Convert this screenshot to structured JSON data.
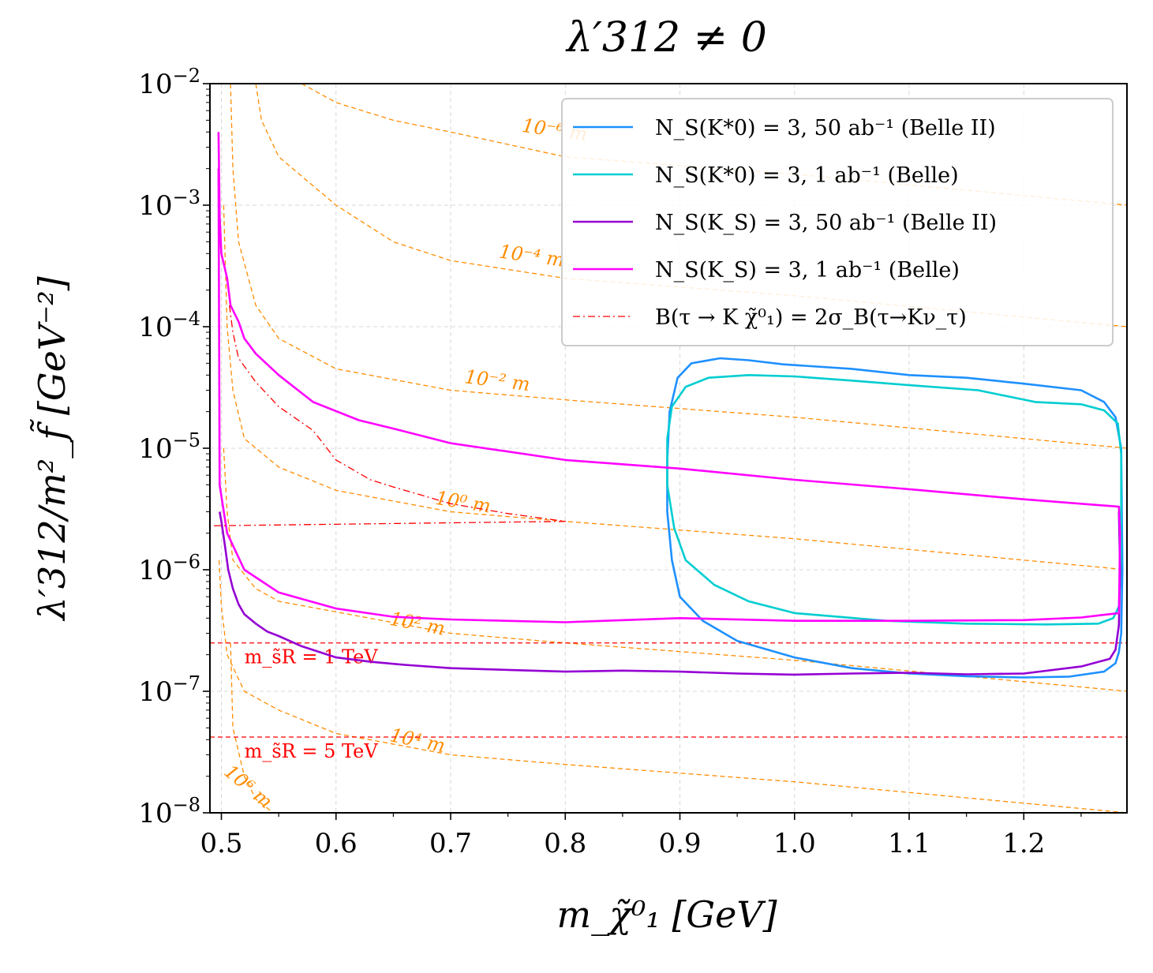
{
  "chart_data": {
    "type": "line",
    "title": "λ′312 ≠ 0",
    "xlabel": "m_χ̃⁰₁ [GeV]",
    "ylabel": "λ′312/m²_f̃ [GeV⁻²]",
    "xlim": [
      0.49,
      1.29
    ],
    "ylim": [
      1e-08,
      0.01
    ],
    "xscale": "linear",
    "yscale": "log",
    "grid": true,
    "legend_position": "top-right",
    "x_ticks": [
      {
        "value": 0.5,
        "label": "0.5"
      },
      {
        "value": 0.6,
        "label": "0.6"
      },
      {
        "value": 0.7,
        "label": "0.7"
      },
      {
        "value": 0.8,
        "label": "0.8"
      },
      {
        "value": 0.9,
        "label": "0.9"
      },
      {
        "value": 1.0,
        "label": "1.0"
      },
      {
        "value": 1.1,
        "label": "1.1"
      },
      {
        "value": 1.2,
        "label": "1.2"
      }
    ],
    "y_ticks": [
      {
        "value": 1e-08,
        "base": "10",
        "exp": "−8"
      },
      {
        "value": 1e-07,
        "base": "10",
        "exp": "−7"
      },
      {
        "value": 1e-06,
        "base": "10",
        "exp": "−6"
      },
      {
        "value": 1e-05,
        "base": "10",
        "exp": "−5"
      },
      {
        "value": 0.0001,
        "base": "10",
        "exp": "−4"
      },
      {
        "value": 0.001,
        "base": "10",
        "exp": "−3"
      },
      {
        "value": 0.01,
        "base": "10",
        "exp": "−2"
      }
    ],
    "series": [
      {
        "name": "N_S(K*0) = 3, 50 ab⁻¹ (Belle II)",
        "color": "#1e90ff",
        "style": "solid",
        "closed": true,
        "points": [
          [
            0.935,
            5.5e-05
          ],
          [
            0.96,
            5.3e-05
          ],
          [
            0.99,
            4.9e-05
          ],
          [
            1.05,
            4.5e-05
          ],
          [
            1.1,
            4e-05
          ],
          [
            1.15,
            3.8e-05
          ],
          [
            1.2,
            3.4e-05
          ],
          [
            1.25,
            3e-05
          ],
          [
            1.27,
            2.4e-05
          ],
          [
            1.28,
            1.8e-05
          ],
          [
            1.285,
            1e-05
          ],
          [
            1.286,
            1e-06
          ],
          [
            1.285,
            3e-07
          ],
          [
            1.283,
            2.1e-07
          ],
          [
            1.28,
            1.7e-07
          ],
          [
            1.27,
            1.45e-07
          ],
          [
            1.24,
            1.32e-07
          ],
          [
            1.2,
            1.3e-07
          ],
          [
            1.15,
            1.33e-07
          ],
          [
            1.1,
            1.4e-07
          ],
          [
            1.05,
            1.55e-07
          ],
          [
            1.0,
            1.9e-07
          ],
          [
            0.95,
            2.6e-07
          ],
          [
            0.92,
            3.8e-07
          ],
          [
            0.9,
            6e-07
          ],
          [
            0.893,
            1.2e-06
          ],
          [
            0.889,
            3e-06
          ],
          [
            0.889,
            8e-06
          ],
          [
            0.891,
            2e-05
          ],
          [
            0.898,
            3.8e-05
          ],
          [
            0.91,
            5e-05
          ]
        ]
      },
      {
        "name": "N_S(K*0) = 3, 1 ab⁻¹ (Belle)",
        "color": "#00cdd1",
        "style": "solid",
        "closed": true,
        "points": [
          [
            0.96,
            4e-05
          ],
          [
            1.0,
            3.9e-05
          ],
          [
            1.05,
            3.6e-05
          ],
          [
            1.1,
            3.3e-05
          ],
          [
            1.16,
            3e-05
          ],
          [
            1.21,
            2.4e-05
          ],
          [
            1.25,
            2.3e-05
          ],
          [
            1.27,
            2.05e-05
          ],
          [
            1.282,
            1.6e-05
          ],
          [
            1.285,
            9e-06
          ],
          [
            1.285,
            1.2e-06
          ],
          [
            1.283,
            5e-07
          ],
          [
            1.278,
            4e-07
          ],
          [
            1.265,
            3.6e-07
          ],
          [
            1.22,
            3.55e-07
          ],
          [
            1.15,
            3.6e-07
          ],
          [
            1.08,
            3.8e-07
          ],
          [
            1.0,
            4.4e-07
          ],
          [
            0.96,
            5.5e-07
          ],
          [
            0.93,
            7.5e-07
          ],
          [
            0.905,
            1.2e-06
          ],
          [
            0.895,
            2.2e-06
          ],
          [
            0.889,
            5e-06
          ],
          [
            0.889,
            1.2e-05
          ],
          [
            0.893,
            2.2e-05
          ],
          [
            0.905,
            3.2e-05
          ],
          [
            0.925,
            3.8e-05
          ]
        ]
      },
      {
        "name": "N_S(K_S) = 3, 50 ab⁻¹ (Belle II)",
        "color": "#9400d3",
        "style": "solid",
        "closed": false,
        "points": [
          [
            0.4985,
            3e-06
          ],
          [
            0.5,
            2.5e-06
          ],
          [
            0.503,
            1.6e-06
          ],
          [
            0.506,
            1e-06
          ],
          [
            0.51,
            7e-07
          ],
          [
            0.515,
            5.2e-07
          ],
          [
            0.52,
            4.3e-07
          ],
          [
            0.53,
            3.6e-07
          ],
          [
            0.54,
            3.1e-07
          ],
          [
            0.55,
            2.85e-07
          ],
          [
            0.57,
            2.35e-07
          ],
          [
            0.6,
            1.9e-07
          ],
          [
            0.63,
            1.75e-07
          ],
          [
            0.66,
            1.65e-07
          ],
          [
            0.7,
            1.55e-07
          ],
          [
            0.75,
            1.5e-07
          ],
          [
            0.8,
            1.45e-07
          ],
          [
            0.85,
            1.48e-07
          ],
          [
            0.9,
            1.45e-07
          ],
          [
            0.95,
            1.4e-07
          ],
          [
            1.0,
            1.37e-07
          ],
          [
            1.05,
            1.4e-07
          ],
          [
            1.1,
            1.42e-07
          ],
          [
            1.15,
            1.38e-07
          ],
          [
            1.2,
            1.4e-07
          ],
          [
            1.25,
            1.6e-07
          ],
          [
            1.275,
            1.85e-07
          ],
          [
            1.28,
            2.2e-07
          ],
          [
            1.283,
            3.5e-07
          ],
          [
            1.284,
            1e-06
          ],
          [
            1.283,
            3e-06
          ]
        ]
      },
      {
        "name": "N_S(K_S) = 3, 1 ab⁻¹ (Belle)",
        "color": "#ff00ff",
        "style": "solid",
        "closed": false,
        "points": [
          [
            0.4975,
            0.004
          ],
          [
            0.4985,
            0.0008
          ],
          [
            0.5,
            0.0004
          ],
          [
            0.505,
            0.00025
          ],
          [
            0.508,
            0.00015
          ],
          [
            0.515,
            0.00011
          ],
          [
            0.52,
            8e-05
          ],
          [
            0.53,
            6e-05
          ],
          [
            0.55,
            4e-05
          ],
          [
            0.58,
            2.4e-05
          ],
          [
            0.62,
            1.7e-05
          ],
          [
            0.65,
            1.45e-05
          ],
          [
            0.7,
            1.1e-05
          ],
          [
            0.8,
            8e-06
          ],
          [
            0.9,
            6.8e-06
          ],
          [
            1.0,
            5.5e-06
          ],
          [
            1.1,
            4.6e-06
          ],
          [
            1.2,
            3.8e-06
          ],
          [
            1.283,
            3.3e-06
          ],
          [
            1.284,
            2e-06
          ],
          [
            1.283,
            4.4e-07
          ],
          [
            1.25,
            4.05e-07
          ],
          [
            1.2,
            3.85e-07
          ],
          [
            1.1,
            3.8e-07
          ],
          [
            1.0,
            3.8e-07
          ],
          [
            0.9,
            4e-07
          ],
          [
            0.8,
            3.7e-07
          ],
          [
            0.7,
            3.9e-07
          ],
          [
            0.65,
            4.1e-07
          ],
          [
            0.6,
            4.8e-07
          ],
          [
            0.55,
            6.5e-07
          ],
          [
            0.52,
            1e-06
          ],
          [
            0.505,
            2e-06
          ],
          [
            0.4985,
            5e-06
          ],
          [
            0.4975,
            0.002
          ]
        ]
      },
      {
        "name": "B(τ → K χ̃⁰₁) = 2σ_B(τ→Kν_τ)",
        "color": "#ff0000",
        "style": "dashdot",
        "closed": false,
        "points": [
          [
            0.507,
            0.00015
          ],
          [
            0.51,
            9e-05
          ],
          [
            0.515,
            5.5e-05
          ],
          [
            0.53,
            3.5e-05
          ],
          [
            0.55,
            2.2e-05
          ],
          [
            0.58,
            1.4e-05
          ],
          [
            0.6,
            8e-06
          ],
          [
            0.63,
            5.5e-06
          ],
          [
            0.65,
            4.8e-06
          ],
          [
            0.7,
            3.5e-06
          ],
          [
            0.75,
            2.9e-06
          ],
          [
            0.8,
            2.5e-06
          ],
          [
            0.49,
            2.3e-06
          ]
        ]
      }
    ],
    "legend": [
      {
        "label": "N_S(K*0) =  3, 50 ab⁻¹ (Belle II)",
        "color": "#1e90ff",
        "style": "solid"
      },
      {
        "label": "N_S(K*0) =  3, 1 ab⁻¹ (Belle)",
        "color": "#00cdd1",
        "style": "solid"
      },
      {
        "label": "N_S(K_S)  =  3, 50 ab⁻¹ (Belle II)",
        "color": "#9400d3",
        "style": "solid"
      },
      {
        "label": "N_S(K_S)  =  3, 1 ab⁻¹ (Belle)",
        "color": "#ff00ff",
        "style": "solid"
      },
      {
        "label": "B(τ → K χ̃⁰₁) = 2σ_B(τ→Kν_τ)",
        "color": "#ff0000",
        "style": "dashdot"
      }
    ],
    "decay_length_contours": {
      "color": "#ff8c00",
      "style": "dashed",
      "lines": [
        {
          "label": "10⁻⁶ m",
          "points": [
            [
              0.57,
              0.01
            ],
            [
              0.6,
              0.007
            ],
            [
              0.65,
              0.005
            ],
            [
              0.7,
              0.004
            ],
            [
              0.8,
              0.0025
            ],
            [
              1.0,
              0.0018
            ],
            [
              1.2,
              0.0012
            ],
            [
              1.29,
              0.001
            ]
          ]
        },
        {
          "label": "10⁻⁴ m",
          "points": [
            [
              0.53,
              0.01
            ],
            [
              0.535,
              0.005
            ],
            [
              0.55,
              0.0025
            ],
            [
              0.6,
              0.001
            ],
            [
              0.65,
              0.0005
            ],
            [
              0.7,
              0.00035
            ],
            [
              0.8,
              0.00025
            ],
            [
              1.0,
              0.00018
            ],
            [
              1.2,
              0.00012
            ],
            [
              1.29,
              0.0001
            ]
          ]
        },
        {
          "label": "10⁻² m",
          "points": [
            [
              0.508,
              0.01
            ],
            [
              0.51,
              0.002
            ],
            [
              0.515,
              0.0005
            ],
            [
              0.53,
              0.00015
            ],
            [
              0.55,
              8e-05
            ],
            [
              0.6,
              4.5e-05
            ],
            [
              0.7,
              3e-05
            ],
            [
              0.8,
              2.5e-05
            ],
            [
              1.0,
              1.8e-05
            ],
            [
              1.2,
              1.2e-05
            ],
            [
              1.29,
              1e-05
            ]
          ]
        },
        {
          "label": "10⁰ m",
          "points": [
            [
              0.502,
              0.001
            ],
            [
              0.505,
              0.0001
            ],
            [
              0.51,
              3e-05
            ],
            [
              0.52,
              1.2e-05
            ],
            [
              0.55,
              7e-06
            ],
            [
              0.6,
              4.5e-06
            ],
            [
              0.7,
              3e-06
            ],
            [
              0.8,
              2.5e-06
            ],
            [
              1.0,
              1.8e-06
            ],
            [
              1.2,
              1.2e-06
            ],
            [
              1.29,
              1e-06
            ]
          ]
        },
        {
          "label": "10² m",
          "points": [
            [
              0.502,
              1e-05
            ],
            [
              0.505,
              3e-06
            ],
            [
              0.51,
              1.2e-06
            ],
            [
              0.53,
              7e-07
            ],
            [
              0.55,
              5.5e-07
            ],
            [
              0.6,
              4.5e-07
            ],
            [
              0.7,
              3e-07
            ],
            [
              0.8,
              2.5e-07
            ],
            [
              1.0,
              1.8e-07
            ],
            [
              1.2,
              1.2e-07
            ],
            [
              1.29,
              1e-07
            ]
          ]
        },
        {
          "label": "10⁴ m",
          "points": [
            [
              0.498,
              1.2e-06
            ],
            [
              0.5,
              5e-07
            ],
            [
              0.505,
              2e-07
            ],
            [
              0.52,
              1e-07
            ],
            [
              0.55,
              7e-08
            ],
            [
              0.6,
              4.5e-08
            ],
            [
              0.7,
              3e-08
            ],
            [
              0.8,
              2.5e-08
            ],
            [
              1.0,
              1.8e-08
            ],
            [
              1.2,
              1.2e-08
            ],
            [
              1.29,
              1e-08
            ]
          ]
        },
        {
          "label": "10⁶ m",
          "points": [
            [
              0.508,
              2.5e-07
            ],
            [
              0.51,
              5e-08
            ],
            [
              0.52,
              2e-08
            ],
            [
              0.53,
              1.3e-08
            ],
            [
              0.545,
              1e-08
            ]
          ]
        }
      ]
    },
    "horizontal_lines": [
      {
        "label": "m_s̃R = 1 TeV",
        "y": 2.5e-07,
        "color": "#ff0000",
        "style": "dashed"
      },
      {
        "label": "m_s̃R = 5 TeV",
        "y": 4.2e-08,
        "color": "#ff0000",
        "style": "dashed"
      }
    ]
  }
}
